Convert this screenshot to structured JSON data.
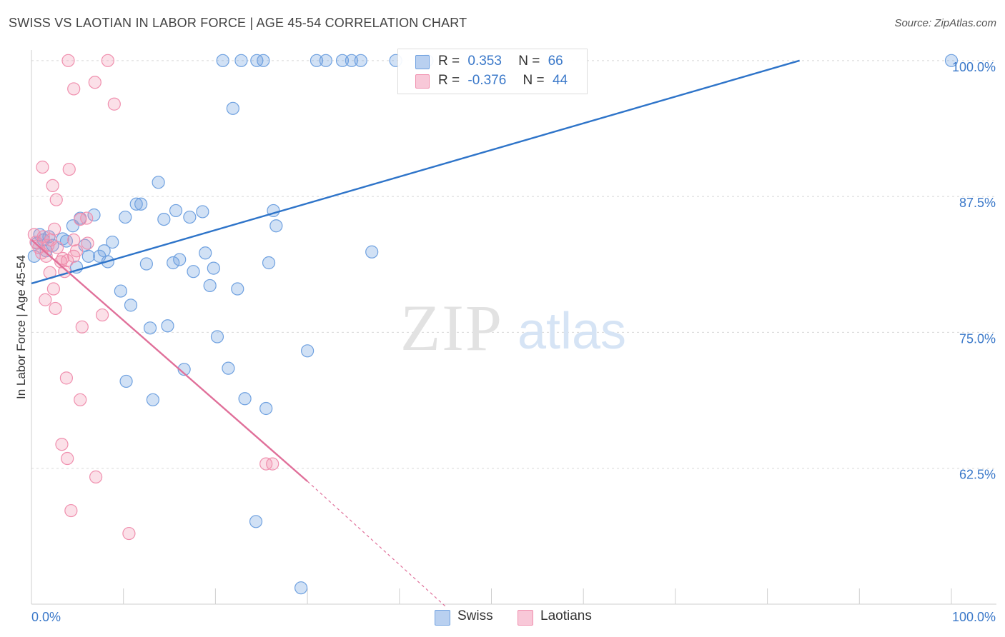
{
  "title": "SWISS VS LAOTIAN IN LABOR FORCE | AGE 45-54 CORRELATION CHART",
  "source": "Source: ZipAtlas.com",
  "watermark": {
    "zip": "ZIP",
    "atlas": "atlas"
  },
  "legend": {
    "swiss": {
      "r_label": "R =",
      "r_value": "0.353",
      "n_label": "N =",
      "n_value": "66"
    },
    "laotians": {
      "r_label": "R =",
      "r_value": "-0.376",
      "n_label": "N =",
      "n_value": "44"
    }
  },
  "bottom_legend": {
    "swiss": "Swiss",
    "laotians": "Laotians"
  },
  "colors": {
    "swiss": "#6fa1e0",
    "swiss_line": "#2e74c9",
    "laotians": "#f08fae",
    "laotians_line": "#e0709a",
    "axis_text": "#3a78c9"
  },
  "chart_data": {
    "type": "scatter",
    "title": "SWISS VS LAOTIAN IN LABOR FORCE | AGE 45-54 CORRELATION CHART",
    "xlabel": "",
    "ylabel": "In Labor Force | Age 45-54",
    "xlim": [
      0,
      100
    ],
    "ylim": [
      50,
      101.5
    ],
    "x_tick_labels": [
      "0.0%",
      "100.0%"
    ],
    "y_ticks": [
      62.5,
      75.0,
      87.5,
      100.0
    ],
    "y_tick_labels": [
      "62.5%",
      "75.0%",
      "87.5%",
      "100.0%"
    ],
    "grid": true,
    "legend_position": "top-center",
    "series": [
      {
        "name": "Swiss",
        "color": "#6fa1e0",
        "r": 0.353,
        "n": 66,
        "trend": {
          "x": [
            0,
            83.5
          ],
          "y": [
            79.5,
            100.0
          ]
        },
        "points": [
          [
            0.3,
            82.0
          ],
          [
            0.6,
            83.2
          ],
          [
            0.9,
            84.0
          ],
          [
            1.3,
            83.5
          ],
          [
            1.6,
            82.5
          ],
          [
            1.9,
            83.8
          ],
          [
            2.3,
            83.0
          ],
          [
            3.4,
            83.6
          ],
          [
            3.8,
            83.4
          ],
          [
            4.5,
            84.8
          ],
          [
            4.9,
            81.0
          ],
          [
            5.3,
            85.5
          ],
          [
            5.8,
            83.0
          ],
          [
            6.2,
            82.0
          ],
          [
            6.8,
            85.8
          ],
          [
            7.4,
            82.0
          ],
          [
            7.9,
            82.5
          ],
          [
            8.3,
            81.5
          ],
          [
            8.8,
            83.3
          ],
          [
            9.7,
            78.8
          ],
          [
            10.3,
            70.5
          ],
          [
            10.2,
            85.6
          ],
          [
            10.8,
            77.5
          ],
          [
            11.4,
            86.8
          ],
          [
            11.9,
            86.8
          ],
          [
            12.5,
            81.3
          ],
          [
            12.9,
            75.4
          ],
          [
            13.2,
            68.8
          ],
          [
            13.8,
            88.8
          ],
          [
            14.4,
            85.4
          ],
          [
            14.8,
            75.6
          ],
          [
            15.4,
            81.4
          ],
          [
            15.7,
            86.2
          ],
          [
            16.1,
            81.7
          ],
          [
            16.6,
            71.6
          ],
          [
            17.2,
            85.6
          ],
          [
            17.6,
            80.6
          ],
          [
            18.6,
            86.1
          ],
          [
            18.9,
            82.3
          ],
          [
            19.4,
            79.3
          ],
          [
            19.8,
            80.9
          ],
          [
            20.2,
            74.6
          ],
          [
            21.4,
            71.7
          ],
          [
            21.9,
            95.6
          ],
          [
            22.4,
            79.0
          ],
          [
            23.2,
            68.9
          ],
          [
            24.4,
            57.6
          ],
          [
            25.5,
            68.0
          ],
          [
            25.8,
            81.4
          ],
          [
            26.3,
            86.2
          ],
          [
            26.6,
            84.8
          ],
          [
            29.3,
            51.5
          ],
          [
            30.0,
            73.3
          ],
          [
            37.0,
            82.4
          ],
          [
            20.8,
            100.0
          ],
          [
            22.8,
            100.0
          ],
          [
            24.5,
            100.0
          ],
          [
            25.2,
            100.0
          ],
          [
            31.0,
            100.0
          ],
          [
            32.0,
            100.0
          ],
          [
            33.8,
            100.0
          ],
          [
            34.8,
            100.0
          ],
          [
            35.8,
            100.0
          ],
          [
            39.6,
            100.0
          ],
          [
            43.0,
            100.0
          ],
          [
            100.0,
            100.0
          ]
        ]
      },
      {
        "name": "Laotians",
        "color": "#f08fae",
        "r": -0.376,
        "n": 44,
        "trend": {
          "x": [
            0,
            30.0
          ],
          "y": [
            83.5,
            61.3
          ]
        },
        "trend_dashed": {
          "x": [
            30.0,
            45.0
          ],
          "y": [
            61.3,
            49.8
          ]
        },
        "points": [
          [
            0.3,
            84.0
          ],
          [
            0.5,
            83.3
          ],
          [
            0.8,
            82.8
          ],
          [
            1.1,
            82.3
          ],
          [
            1.3,
            83.8
          ],
          [
            1.6,
            82.0
          ],
          [
            1.8,
            83.0
          ],
          [
            2.1,
            83.5
          ],
          [
            2.5,
            84.5
          ],
          [
            2.8,
            82.8
          ],
          [
            3.2,
            81.5
          ],
          [
            3.4,
            81.8
          ],
          [
            3.6,
            80.6
          ],
          [
            2.0,
            80.5
          ],
          [
            2.4,
            79.0
          ],
          [
            1.5,
            78.0
          ],
          [
            2.6,
            77.2
          ],
          [
            1.2,
            90.2
          ],
          [
            2.3,
            88.5
          ],
          [
            2.7,
            87.2
          ],
          [
            4.1,
            90.0
          ],
          [
            3.9,
            81.6
          ],
          [
            4.6,
            83.5
          ],
          [
            4.6,
            82.0
          ],
          [
            5.3,
            85.4
          ],
          [
            5.5,
            75.5
          ],
          [
            5.3,
            68.8
          ],
          [
            3.8,
            70.8
          ],
          [
            3.3,
            64.7
          ],
          [
            3.9,
            63.4
          ],
          [
            4.3,
            58.6
          ],
          [
            7.0,
            61.7
          ],
          [
            7.7,
            76.6
          ],
          [
            10.6,
            56.5
          ],
          [
            4.0,
            100.0
          ],
          [
            8.3,
            100.0
          ],
          [
            6.9,
            98.0
          ],
          [
            4.6,
            97.4
          ],
          [
            9.0,
            96.0
          ],
          [
            6.1,
            83.2
          ],
          [
            4.9,
            82.5
          ],
          [
            6.0,
            85.5
          ],
          [
            25.5,
            62.9
          ],
          [
            26.2,
            62.9
          ]
        ]
      }
    ]
  }
}
